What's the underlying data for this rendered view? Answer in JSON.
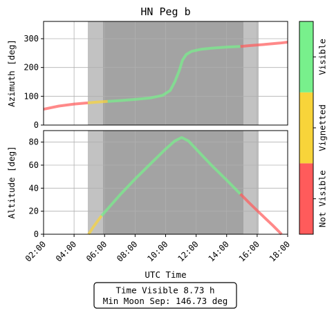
{
  "chart_data": {
    "type": "line",
    "title": "HN Peg b",
    "xlabel": "UTC Time",
    "x_ticks": [
      "02:00",
      "04:00",
      "06:00",
      "08:00",
      "10:00",
      "12:00",
      "14:00",
      "16:00",
      "18:00"
    ],
    "x_range_hours": [
      2,
      18
    ],
    "twilight_bands_hours": {
      "light": [
        [
          4.9,
          5.9
        ],
        [
          15.1,
          16.1
        ]
      ],
      "dark": [
        [
          5.9,
          15.1
        ]
      ]
    },
    "panels": [
      {
        "name": "azimuth",
        "ylabel": "Azimuth [deg]",
        "ylim": [
          0,
          360
        ],
        "y_ticks": [
          0,
          100,
          200,
          300
        ],
        "series": [
          {
            "state": "not-visible",
            "x": [
              2,
              3,
              4,
              4.9
            ],
            "y": [
              55,
              66,
              73,
              77
            ]
          },
          {
            "state": "vignetted",
            "x": [
              4.9,
              5.5,
              6.2
            ],
            "y": [
              77,
              80,
              82
            ]
          },
          {
            "state": "visible",
            "x": [
              6.2,
              7,
              8,
              9,
              9.8,
              10.3,
              10.6,
              10.9,
              11.1,
              11.35,
              11.7,
              12.3,
              13,
              14,
              14.9
            ],
            "y": [
              82,
              85,
              89,
              94,
              103,
              120,
              150,
              190,
              225,
              245,
              256,
              263,
              267,
              271,
              273
            ]
          },
          {
            "state": "not-visible",
            "x": [
              14.9,
              15.5,
              16.5,
              17.5,
              18
            ],
            "y": [
              273,
              276,
              280,
              285,
              288
            ]
          }
        ]
      },
      {
        "name": "altitude",
        "ylabel": "Altitude [deg]",
        "ylim": [
          0,
          90
        ],
        "y_ticks": [
          0,
          20,
          40,
          60,
          80
        ],
        "series": [
          {
            "state": "vignetted",
            "x": [
              4.95,
              5.3,
              5.8
            ],
            "y": [
              0,
              7,
              16
            ]
          },
          {
            "state": "visible",
            "x": [
              5.8,
              7,
              8,
              9,
              10,
              10.6,
              11.05,
              11.5,
              12,
              13,
              14,
              14.9
            ],
            "y": [
              16,
              34,
              48,
              61,
              74,
              81,
              84,
              81,
              74,
              60,
              47,
              35
            ]
          },
          {
            "state": "not-visible",
            "x": [
              14.9,
              15.5,
              16.2,
              17,
              17.6
            ],
            "y": [
              35,
              27,
              18,
              8,
              0
            ]
          }
        ]
      }
    ],
    "colorbar": {
      "labels": [
        "Not Visible",
        "Vignetted",
        "Visible"
      ],
      "colors": [
        "#ff5b5b",
        "#f8d43a",
        "#78f08c"
      ]
    },
    "summary_box": {
      "line1": "Time Visible 8.73 h",
      "line2": "Min Moon Sep: 146.73 deg"
    }
  }
}
